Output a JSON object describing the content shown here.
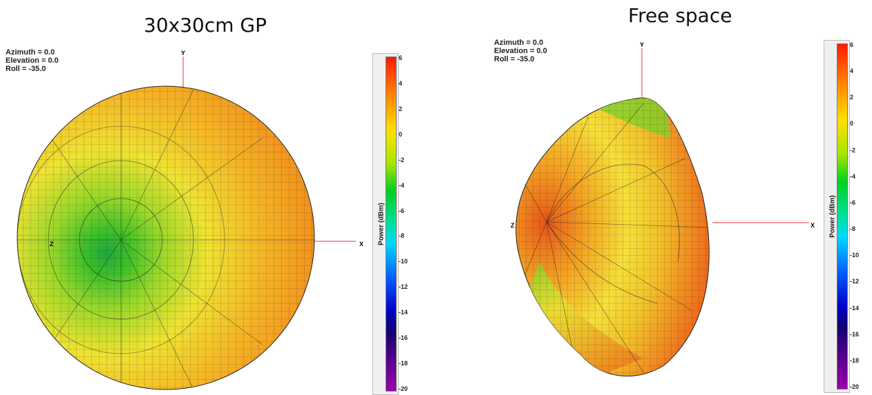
{
  "panels": [
    {
      "title": "30x30cm GP",
      "azimuth": "Azimuth = 0.0",
      "elevation": "Elevation = 0.0",
      "roll": "Roll = -35.0",
      "axes": {
        "x": "X",
        "y": "Y",
        "z": "Z"
      },
      "colorbar_label": "Power (dBm)"
    },
    {
      "title": "Free space",
      "azimuth": "Azimuth = 0.0",
      "elevation": "Elevation = 0.0",
      "roll": "Roll = -35.0",
      "axes": {
        "x": "X",
        "y": "Y",
        "z": "Z"
      },
      "colorbar_label": "Power (dBm)"
    }
  ],
  "colorbar_ticks": [
    "6",
    "4",
    "2",
    "0",
    "-2",
    "-4",
    "-6",
    "-8",
    "-10",
    "-12",
    "-14",
    "-16",
    "-18",
    "-20"
  ],
  "colors": {
    "orange": "#f39a1e",
    "yellow": "#f6e43a",
    "green": "#5fcf2a",
    "axis": "#e8343e"
  }
}
